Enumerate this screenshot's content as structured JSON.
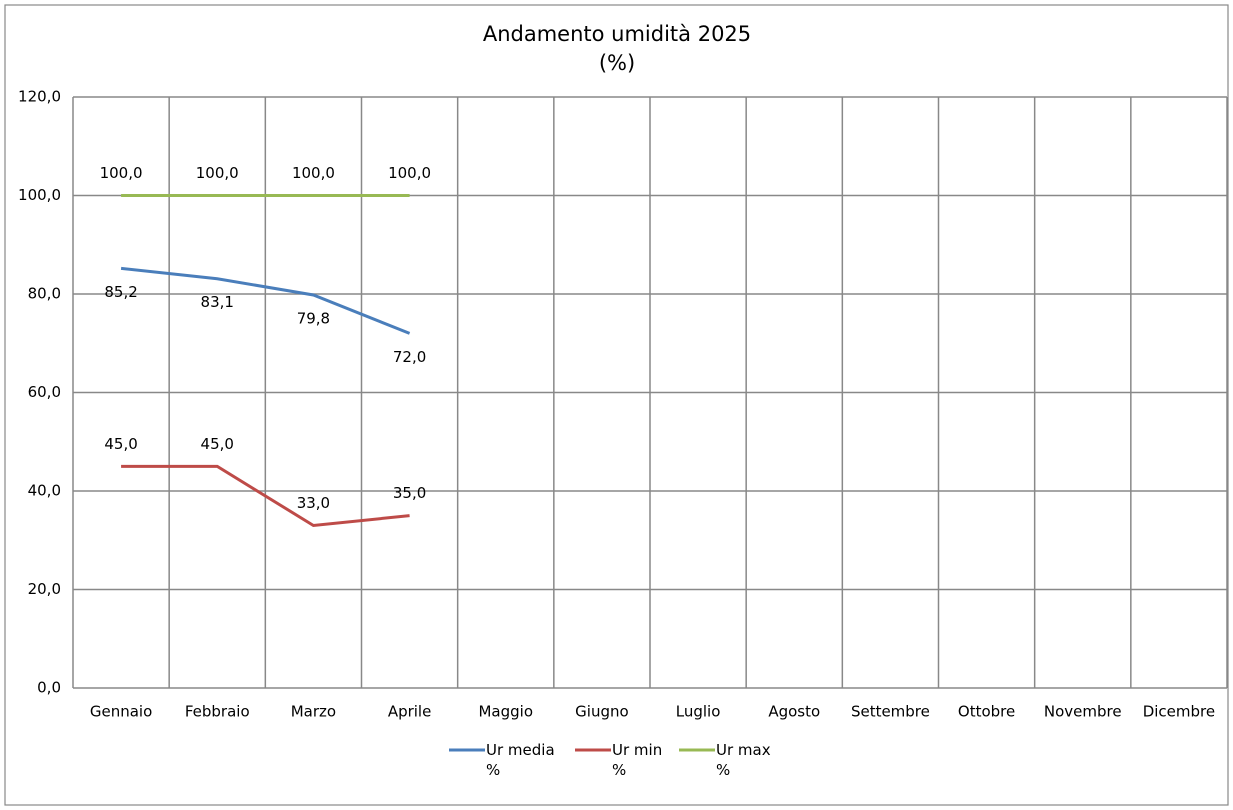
{
  "chart_data": {
    "type": "line",
    "title": "Andamento umidità 2025",
    "subtitle": "(%)",
    "categories": [
      "Gennaio",
      "Febbraio",
      "Marzo",
      "Aprile",
      "Maggio",
      "Giugno",
      "Luglio",
      "Agosto",
      "Settembre",
      "Ottobre",
      "Novembre",
      "Dicembre"
    ],
    "series": [
      {
        "name": "Ur media %",
        "color": "#4a7ebb",
        "values": [
          85.2,
          83.1,
          79.8,
          72.0,
          null,
          null,
          null,
          null,
          null,
          null,
          null,
          null
        ],
        "value_labels": [
          "85,2",
          "83,1",
          "79,8",
          "72,0",
          null,
          null,
          null,
          null,
          null,
          null,
          null,
          null
        ]
      },
      {
        "name": "Ur min %",
        "color": "#be4b48",
        "values": [
          45.0,
          45.0,
          33.0,
          35.0,
          null,
          null,
          null,
          null,
          null,
          null,
          null,
          null
        ],
        "value_labels": [
          "45,0",
          "45,0",
          "33,0",
          "35,0",
          null,
          null,
          null,
          null,
          null,
          null,
          null,
          null
        ]
      },
      {
        "name": "Ur max %",
        "color": "#98b954",
        "values": [
          100.0,
          100.0,
          100.0,
          100.0,
          null,
          null,
          null,
          null,
          null,
          null,
          null,
          null
        ],
        "value_labels": [
          "100,0",
          "100,0",
          "100,0",
          "100,0",
          null,
          null,
          null,
          null,
          null,
          null,
          null,
          null
        ]
      }
    ],
    "ylim": [
      0,
      120
    ],
    "yticks": [
      {
        "value": 0,
        "label": "0,0"
      },
      {
        "value": 20,
        "label": "20,0"
      },
      {
        "value": 40,
        "label": "40,0"
      },
      {
        "value": 60,
        "label": "60,0"
      },
      {
        "value": 80,
        "label": "80,0"
      },
      {
        "value": 100,
        "label": "100,0"
      },
      {
        "value": 120,
        "label": "120,0"
      }
    ],
    "grid": true,
    "legend": "bottom"
  }
}
